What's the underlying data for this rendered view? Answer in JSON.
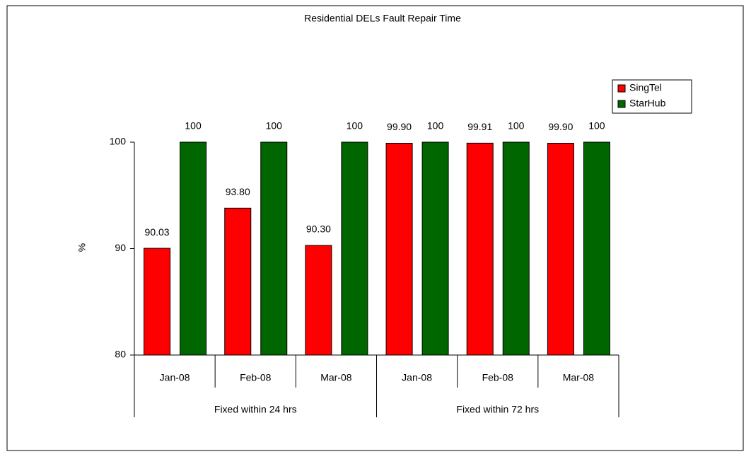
{
  "chart_data": {
    "type": "bar",
    "title": "Residential DELs Fault Repair Time",
    "y_label": "%",
    "groups": [
      {
        "name": "Fixed within 24 hrs",
        "categories": [
          "Jan-08",
          "Feb-08",
          "Mar-08"
        ]
      },
      {
        "name": "Fixed within 72 hrs",
        "categories": [
          "Jan-08",
          "Feb-08",
          "Mar-08"
        ]
      }
    ],
    "series": [
      {
        "name": "SingTel",
        "color": "#ff0000",
        "values": [
          90.03,
          93.8,
          90.3,
          99.9,
          99.91,
          99.9
        ],
        "value_labels": [
          "90.03",
          "93.80",
          "90.30",
          "99.90",
          "99.91",
          "99.90"
        ]
      },
      {
        "name": "StarHub",
        "color": "#006600",
        "values": [
          100,
          100,
          100,
          100,
          100,
          100
        ]
      }
    ],
    "ylim": [
      80,
      100
    ],
    "yticks": [
      80,
      90,
      100
    ],
    "legend": "upper right"
  }
}
